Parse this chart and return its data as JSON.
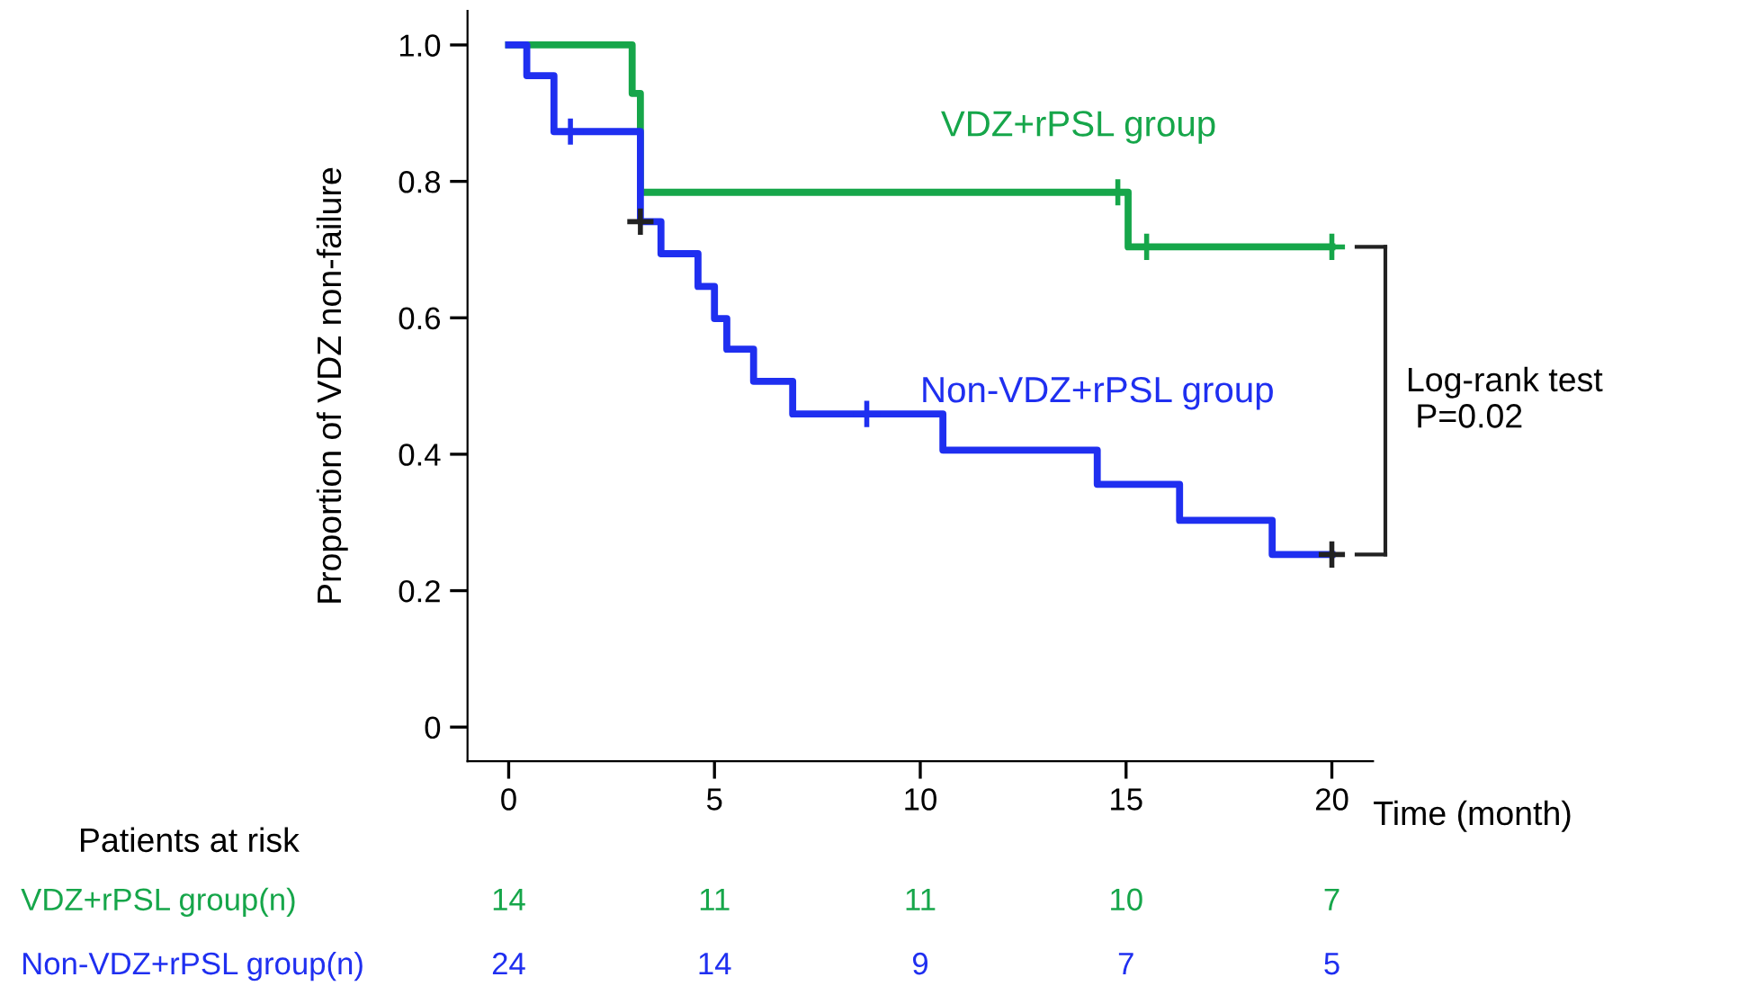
{
  "chart_data": {
    "type": "step",
    "ylabel": "Proportion of VDZ non-failure",
    "xlabel": "Time (month)",
    "xlim": [
      -1,
      21
    ],
    "xticks": [
      0,
      5,
      10,
      15,
      20
    ],
    "ylim": [
      -0.05,
      1.05
    ],
    "yticks": [
      {
        "value": 0,
        "label": "0"
      },
      0.2,
      0.4,
      0.6,
      0.8,
      {
        "value": 1.0,
        "label": "1.0"
      }
    ],
    "grid": false,
    "legend": false,
    "line_style": "solid",
    "series": [
      {
        "name": "VDZ+rPSL group",
        "color": "#16a64a",
        "x": [
          0,
          3.0,
          3.2,
          15.05,
          20
        ],
        "values": [
          1.0,
          0.929,
          0.784,
          0.704,
          0.704
        ]
      },
      {
        "name": "Non-VDZ+rPSL group",
        "color": "#1f2ff0",
        "x": [
          0,
          0.44,
          1.1,
          3.2,
          3.7,
          4.6,
          5.0,
          5.3,
          5.95,
          6.9,
          10.55,
          14.3,
          16.3,
          18.55,
          20
        ],
        "values": [
          1.0,
          0.955,
          0.873,
          0.741,
          0.694,
          0.646,
          0.599,
          0.554,
          0.507,
          0.459,
          0.406,
          0.356,
          0.303,
          0.253,
          0.253
        ]
      },
      {
        "color": "#16a64a",
        "type": "scatter",
        "marker": "cross",
        "x": [
          14.8,
          15.5,
          20
        ],
        "values": [
          0.784,
          0.704,
          0.704
        ]
      },
      {
        "color": "#1f2ff0",
        "type": "scatter",
        "marker": "cross",
        "x": [
          1.5,
          8.7
        ],
        "values": [
          0.873,
          0.459
        ]
      },
      {
        "color": "#222222",
        "type": "scatter",
        "marker": "cross",
        "x": [
          3.2,
          20
        ],
        "values": [
          0.741,
          0.253
        ]
      }
    ],
    "annotations": [
      "Log-rank test\n P=0.02",
      "Patients at risk",
      "VDZ+rPSL group(n)",
      "14",
      "11",
      "11",
      "10",
      "7",
      "Non-VDZ+rPSL group(n)",
      "24",
      "14",
      "9",
      "7",
      "5"
    ]
  }
}
